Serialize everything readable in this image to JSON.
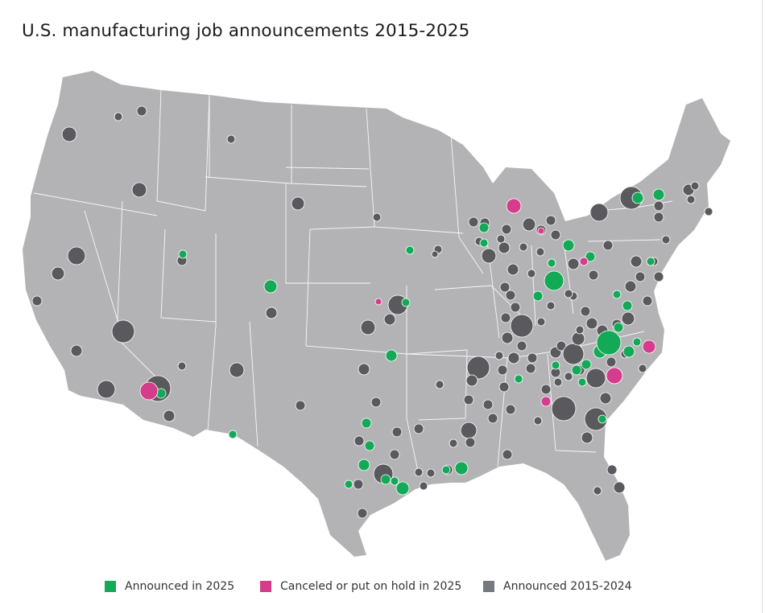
{
  "title": "U.S. manufacturing job announcements 2015-2025",
  "colors": {
    "land": "#b3b3b5",
    "state_border": "#ffffff",
    "announced_2025": "#14a957",
    "canceled_2025": "#d53c8b",
    "announced_2015_2024": "#5a5a5e"
  },
  "legend": {
    "items": [
      {
        "label": "Announced in 2025",
        "color": "#14a957"
      },
      {
        "label": "Canceled or put on hold in 2025",
        "color": "#d53c8b"
      },
      {
        "label": "Announced 2015-2024",
        "color": "#747982"
      }
    ]
  },
  "map": {
    "region": "Contiguous United States",
    "categories": [
      "Announced in 2025",
      "Canceled or put on hold in 2025",
      "Announced 2015-2024"
    ]
  }
}
